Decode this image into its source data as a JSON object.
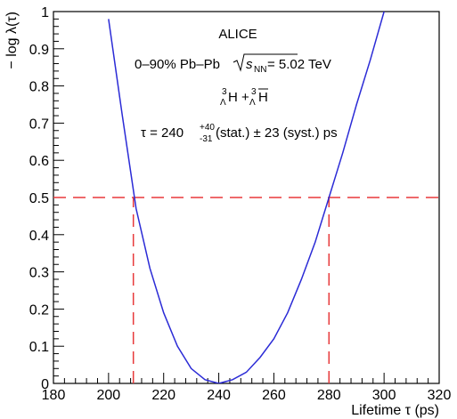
{
  "chart_data": {
    "type": "line",
    "x_label": "Lifetime τ (ps)",
    "y_label": "− log λ(τ)",
    "annotations": {
      "experiment": "ALICE",
      "system": [
        "0–90% Pb–Pb ",
        "s",
        "NN",
        " = 5.02 TeV"
      ],
      "particle": [
        "3",
        "Λ",
        "H + ",
        "3",
        "Λ",
        "H"
      ],
      "result": [
        "τ = 240",
        "+40",
        "-31",
        " (stat.) ± 23 (syst.) ps"
      ]
    },
    "x": [
      200,
      205,
      210,
      215,
      220,
      225,
      230,
      235,
      240,
      245,
      250,
      255,
      260,
      265,
      270,
      275,
      280,
      285,
      290,
      295,
      300
    ],
    "series": [
      {
        "name": "−log λ",
        "color": "#2b2bd6",
        "values": [
          0.98,
          0.72,
          0.47,
          0.31,
          0.19,
          0.1,
          0.04,
          0.01,
          0,
          0.01,
          0.03,
          0.07,
          0.12,
          0.19,
          0.28,
          0.38,
          0.5,
          0.62,
          0.75,
          0.87,
          1.0
        ]
      }
    ],
    "hline": 0.5,
    "vlines": [
      209,
      280
    ],
    "ref_color": "#e8393a",
    "xlim": [
      180,
      320
    ],
    "ylim": [
      0,
      1
    ],
    "xticks": [
      180,
      200,
      220,
      240,
      260,
      280,
      300,
      320
    ],
    "yticks": [
      0,
      0.1,
      0.2,
      0.3,
      0.4,
      0.5,
      0.6,
      0.7,
      0.8,
      0.9,
      1
    ]
  }
}
